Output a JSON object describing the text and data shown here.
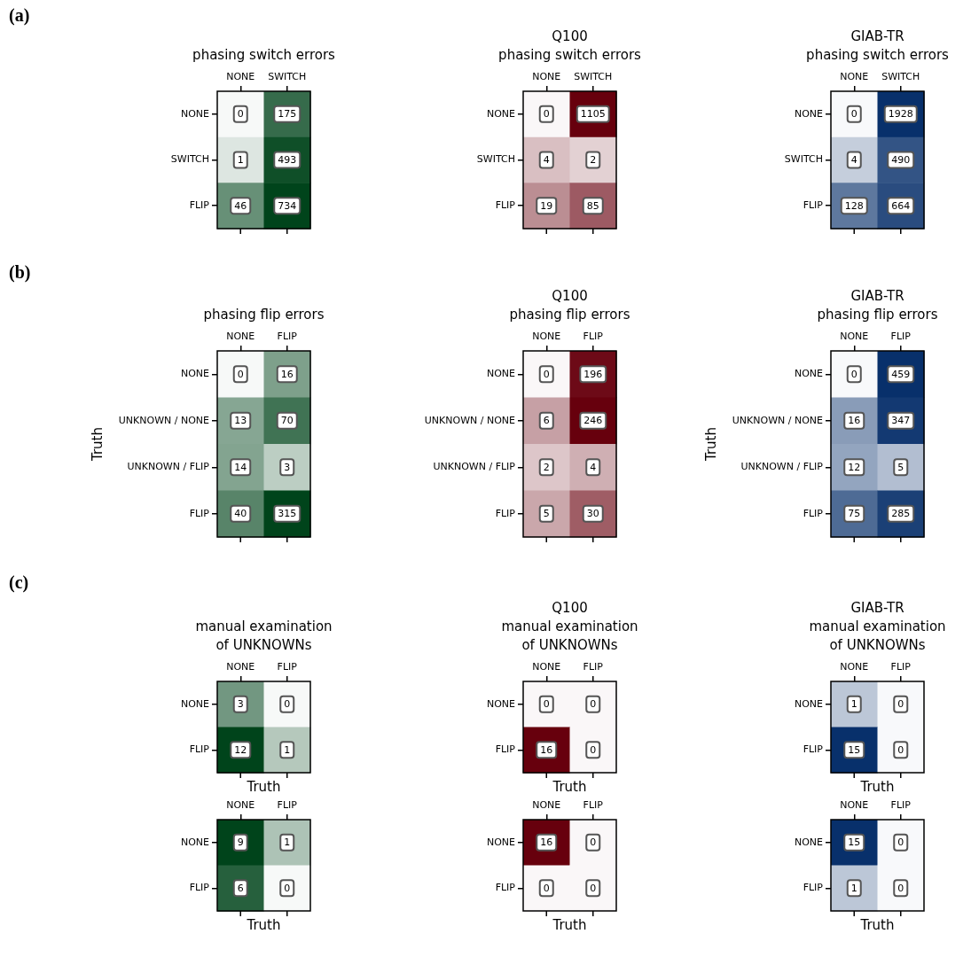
{
  "chart_data": [
    {
      "type": "heatmap",
      "title": "phasing switch errors",
      "categories": [
        "NONE",
        "SWITCH"
      ],
      "y_categories": [
        "NONE",
        "SWITCH",
        "FLIP"
      ],
      "cells": [
        [
          0,
          175
        ],
        [
          1,
          493
        ],
        [
          46,
          734
        ]
      ],
      "color": "#00441b",
      "data_labels": true,
      "annotations": [
        "(a)"
      ]
    },
    {
      "type": "heatmap",
      "title": "Q100\nphasing switch errors",
      "categories": [
        "NONE",
        "SWITCH"
      ],
      "y_categories": [
        "NONE",
        "SWITCH",
        "FLIP"
      ],
      "cells": [
        [
          0,
          1105
        ],
        [
          4,
          2
        ],
        [
          19,
          85
        ]
      ],
      "color": "#67000d",
      "data_labels": true
    },
    {
      "type": "heatmap",
      "title": "GIAB-TR\nphasing switch errors",
      "categories": [
        "NONE",
        "SWITCH"
      ],
      "y_categories": [
        "NONE",
        "SWITCH",
        "FLIP"
      ],
      "cells": [
        [
          0,
          1928
        ],
        [
          4,
          490
        ],
        [
          128,
          664
        ]
      ],
      "color": "#08306b",
      "data_labels": true
    },
    {
      "type": "heatmap",
      "title": "phasing flip errors",
      "ylabel": "Truth",
      "categories": [
        "NONE",
        "FLIP"
      ],
      "y_categories": [
        "NONE",
        "UNKNOWN / NONE",
        "UNKNOWN / FLIP",
        "FLIP"
      ],
      "cells": [
        [
          0,
          16
        ],
        [
          13,
          70
        ],
        [
          14,
          3
        ],
        [
          40,
          315
        ]
      ],
      "color": "#00441b",
      "data_labels": true,
      "annotations": [
        "(b)"
      ]
    },
    {
      "type": "heatmap",
      "title": "Q100\nphasing flip errors",
      "categories": [
        "NONE",
        "FLIP"
      ],
      "y_categories": [
        "NONE",
        "UNKNOWN / NONE",
        "UNKNOWN / FLIP",
        "FLIP"
      ],
      "cells": [
        [
          0,
          196
        ],
        [
          6,
          246
        ],
        [
          2,
          4
        ],
        [
          5,
          30
        ]
      ],
      "color": "#67000d",
      "data_labels": true
    },
    {
      "type": "heatmap",
      "title": "GIAB-TR\nphasing flip errors",
      "ylabel": "Truth",
      "categories": [
        "NONE",
        "FLIP"
      ],
      "y_categories": [
        "NONE",
        "UNKNOWN / NONE",
        "UNKNOWN / FLIP",
        "FLIP"
      ],
      "cells": [
        [
          0,
          459
        ],
        [
          16,
          347
        ],
        [
          12,
          5
        ],
        [
          75,
          285
        ]
      ],
      "color": "#08306b",
      "data_labels": true
    },
    {
      "type": "heatmap",
      "title": "manual examination\nof UNKNOWNs",
      "xlabel": "Truth",
      "categories": [
        "NONE",
        "FLIP"
      ],
      "y_categories": [
        "NONE",
        "FLIP"
      ],
      "cells": [
        [
          3,
          0
        ],
        [
          12,
          1
        ]
      ],
      "color": "#00441b",
      "data_labels": true,
      "annotations": [
        "(c)"
      ]
    },
    {
      "type": "heatmap",
      "title": "Q100\nmanual examination\nof UNKNOWNs",
      "xlabel": "Truth",
      "categories": [
        "NONE",
        "FLIP"
      ],
      "y_categories": [
        "NONE",
        "FLIP"
      ],
      "cells": [
        [
          0,
          0
        ],
        [
          16,
          0
        ]
      ],
      "color": "#67000d",
      "data_labels": true
    },
    {
      "type": "heatmap",
      "title": "GIAB-TR\nmanual examination\nof UNKNOWNs",
      "xlabel": "Truth",
      "categories": [
        "NONE",
        "FLIP"
      ],
      "y_categories": [
        "NONE",
        "FLIP"
      ],
      "cells": [
        [
          1,
          0
        ],
        [
          15,
          0
        ]
      ],
      "color": "#08306b",
      "data_labels": true
    },
    {
      "type": "heatmap",
      "xlabel": "Truth",
      "categories": [
        "NONE",
        "FLIP"
      ],
      "y_categories": [
        "NONE",
        "FLIP"
      ],
      "cells": [
        [
          9,
          1
        ],
        [
          6,
          0
        ]
      ],
      "color": "#00441b",
      "data_labels": true
    },
    {
      "type": "heatmap",
      "xlabel": "Truth",
      "categories": [
        "NONE",
        "FLIP"
      ],
      "y_categories": [
        "NONE",
        "FLIP"
      ],
      "cells": [
        [
          16,
          0
        ],
        [
          0,
          0
        ]
      ],
      "color": "#67000d",
      "data_labels": true
    },
    {
      "type": "heatmap",
      "xlabel": "Truth",
      "categories": [
        "NONE",
        "FLIP"
      ],
      "y_categories": [
        "NONE",
        "FLIP"
      ],
      "cells": [
        [
          15,
          0
        ],
        [
          1,
          0
        ]
      ],
      "color": "#08306b",
      "data_labels": true
    }
  ]
}
